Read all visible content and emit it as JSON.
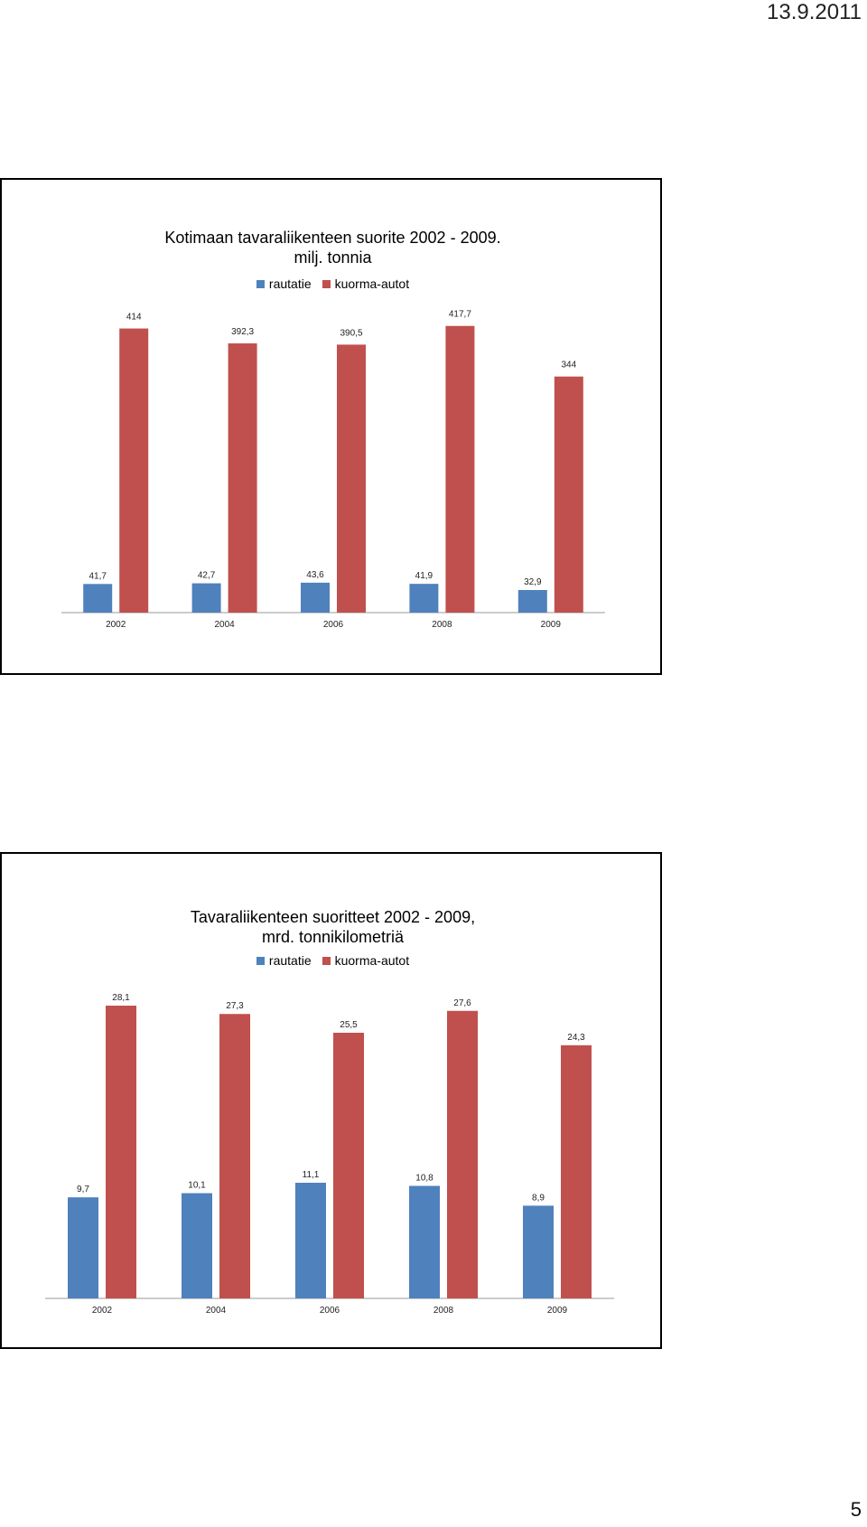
{
  "header": {
    "date": "13.9.2011"
  },
  "footer": {
    "page_number": "5"
  },
  "colors": {
    "rautatie": "#4F81BD",
    "kuorma_autot": "#C0504D",
    "axis": "#999999"
  },
  "chart_data": [
    {
      "type": "bar",
      "title_line1": "Kotimaan tavaraliikenteen suorite 2002 - 2009.",
      "title_line2": "milj. tonnia",
      "categories": [
        "2002",
        "2004",
        "2006",
        "2008",
        "2009"
      ],
      "series": [
        {
          "name": "rautatie",
          "values": [
            41.7,
            42.7,
            43.6,
            41.9,
            32.9
          ],
          "labels": [
            "41,7",
            "42,7",
            "43,6",
            "41,9",
            "32,9"
          ]
        },
        {
          "name": "kuorma-autot",
          "values": [
            414,
            392.3,
            390.5,
            417.7,
            344
          ],
          "labels": [
            "414",
            "392,3",
            "390,5",
            "417,7",
            "344"
          ]
        }
      ],
      "ylim": [
        0,
        420
      ],
      "legend": "top",
      "grid": false
    },
    {
      "type": "bar",
      "title_line1": "Tavaraliikenteen  suoritteet 2002 - 2009,",
      "title_line2": "mrd. tonnikilometriä",
      "categories": [
        "2002",
        "2004",
        "2006",
        "2008",
        "2009"
      ],
      "series": [
        {
          "name": "rautatie",
          "values": [
            9.7,
            10.1,
            11.1,
            10.8,
            8.9
          ],
          "labels": [
            "9,7",
            "10,1",
            "11,1",
            "10,8",
            "8,9"
          ]
        },
        {
          "name": "kuorma-autot",
          "values": [
            28.1,
            27.3,
            25.5,
            27.6,
            24.3
          ],
          "labels": [
            "28,1",
            "27,3",
            "25,5",
            "27,6",
            "24,3"
          ]
        }
      ],
      "ylim": [
        0,
        28.1
      ],
      "legend": "top",
      "grid": false
    }
  ]
}
